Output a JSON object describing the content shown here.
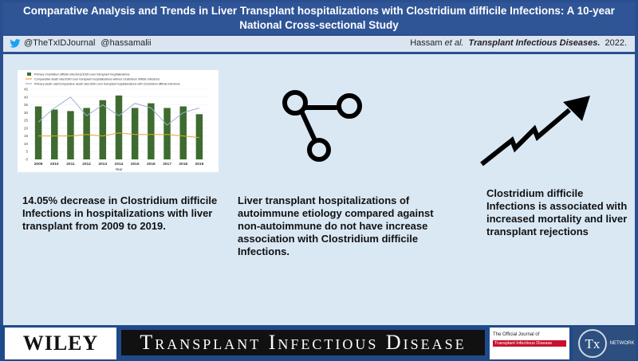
{
  "header": {
    "title": "Comparative Analysis and Trends in Liver Transplant hospitalizations with Clostridium difficile Infections: A 10-year National Cross-sectional Study"
  },
  "subheader": {
    "handle1": "@TheTxIDJournal",
    "handle2": "@hassamalii",
    "citation_author": "Hassam",
    "citation_etal": "et al.",
    "citation_journal": "Transplant Infectious Diseases.",
    "citation_year": "2022."
  },
  "chart_data": {
    "type": "bar",
    "categories": [
      "2009",
      "2010",
      "2011",
      "2012",
      "2013",
      "2014",
      "2015",
      "2016",
      "2017",
      "2018",
      "2019"
    ],
    "series": [
      {
        "name": "Primary Clostridium difficile infections/1000 Liver transplant hospitalizations",
        "values": [
          34,
          32,
          31,
          33,
          38,
          41,
          33,
          36,
          33,
          34,
          29
        ]
      },
      {
        "name": "Comparative death rate/1000 Liver transplant hospitalizations without Clostridium difficile infections",
        "values": [
          15,
          15,
          15,
          16,
          15,
          17,
          16,
          16,
          16,
          15,
          14
        ]
      },
      {
        "name": "Primary death rate/Comparative death rate/1000 Liver transplant hospitalizations with Clostridium difficile infections",
        "values": [
          24,
          33,
          40,
          28,
          35,
          28,
          36,
          33,
          22,
          30,
          33
        ]
      }
    ],
    "xlabel": "Year",
    "ylim": [
      0,
      45
    ],
    "colors": {
      "bars": "#3e6b2f",
      "line_orange": "#e3a72f",
      "line_blue": "#9bb1d4"
    }
  },
  "panels": {
    "left_text": "14.05% decrease in Clostridium difficile Infections in hospitalizations with liver transplant from 2009 to 2019.",
    "middle_text": "Liver transplant hospitalizations of autoimmune etiology compared against non-autoimmune do not have increase association with Clostridium difficile Infections.",
    "right_text": "Clostridium difficile Infections is associated with increased mortality and liver transplant rejections"
  },
  "icons": {
    "middle": "network-nodes-icon",
    "right": "trending-up-arrow-icon",
    "twitter": "twitter-bird-icon"
  },
  "footer": {
    "publisher": "WILEY",
    "journal": "Transplant Infectious Disease",
    "official_line1": "The Official Journal of",
    "official_line2": "Transplant Infectious Disease",
    "network_logo": "Tx",
    "network_label": "NETWORK"
  }
}
